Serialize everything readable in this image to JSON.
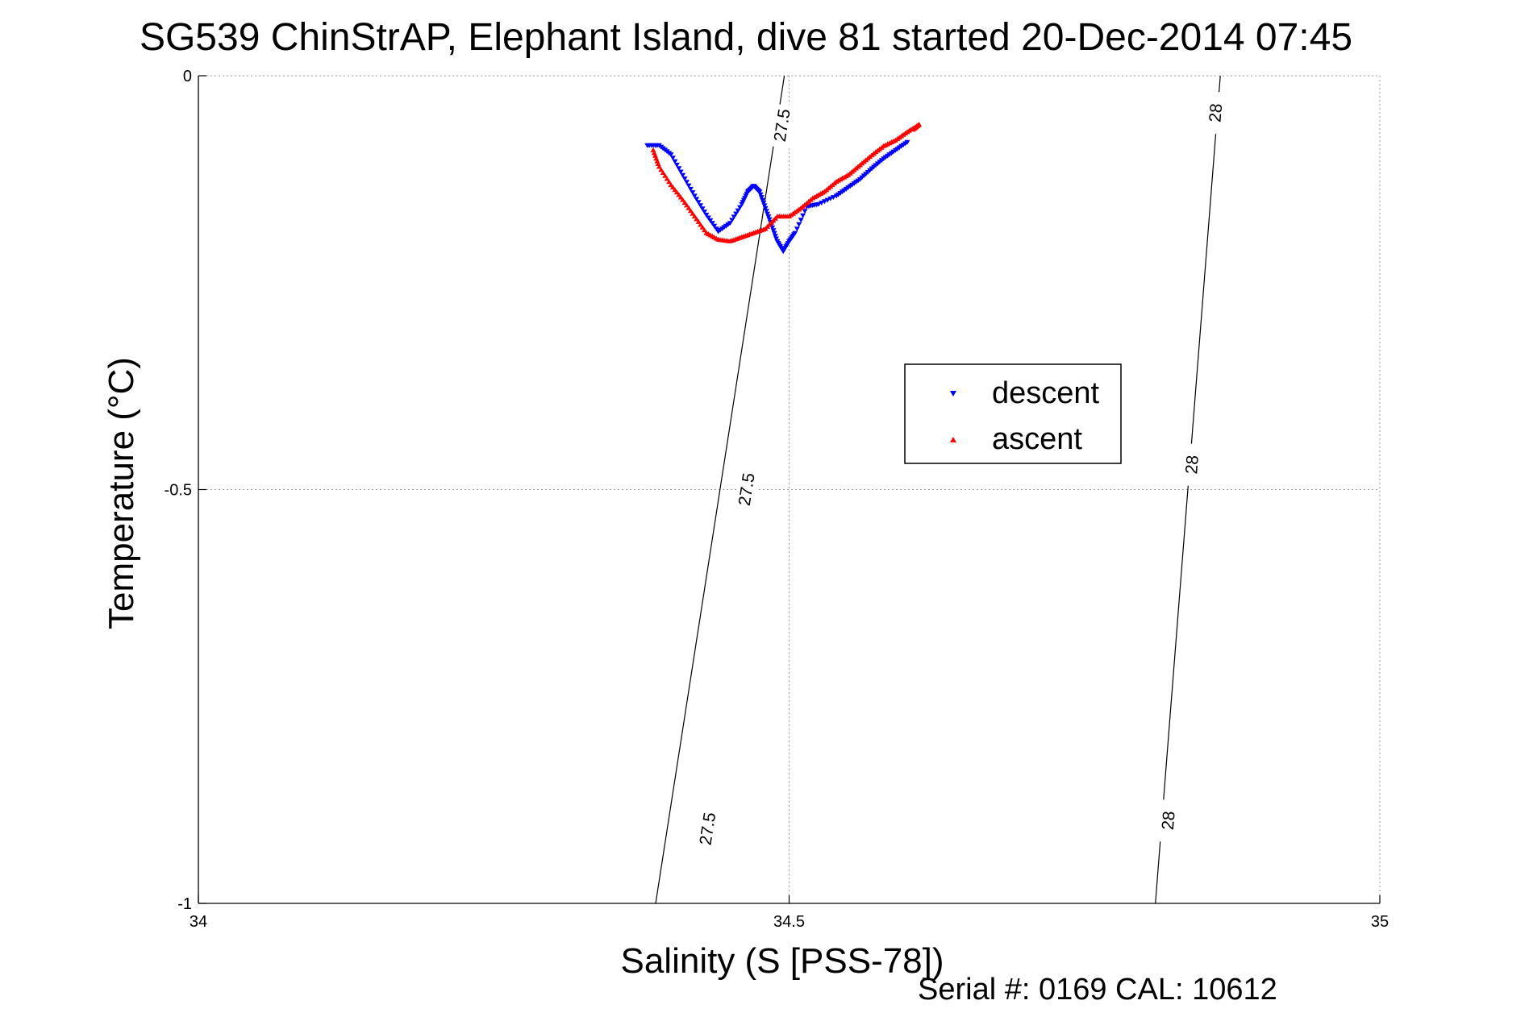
{
  "chart_data": {
    "type": "scatter",
    "title": "SG539 ChinStrAP, Elephant Island, dive 81 started 20-Dec-2014 07:45",
    "xlabel": "Salinity (S [PSS-78])",
    "ylabel": "Temperature (°C)",
    "footer": "Serial #: 0169 CAL: 10612",
    "xlim": [
      34,
      35
    ],
    "ylim": [
      -1,
      0
    ],
    "xticks": [
      34,
      34.5,
      35
    ],
    "xtick_labels": [
      "34",
      "34.5",
      "35"
    ],
    "yticks": [
      -1,
      -0.5,
      0
    ],
    "ytick_labels": [
      "-1",
      "-0.5",
      "0"
    ],
    "grid": true,
    "legend_position": "center-right",
    "series": [
      {
        "name": "descent",
        "color": "#0000ff",
        "marker": "triangle-down",
        "points": [
          [
            34.38,
            -0.084
          ],
          [
            34.39,
            -0.084
          ],
          [
            34.4,
            -0.095
          ],
          [
            34.41,
            -0.12
          ],
          [
            34.42,
            -0.145
          ],
          [
            34.43,
            -0.168
          ],
          [
            34.44,
            -0.188
          ],
          [
            34.45,
            -0.178
          ],
          [
            34.46,
            -0.155
          ],
          [
            34.465,
            -0.14
          ],
          [
            34.47,
            -0.133
          ],
          [
            34.475,
            -0.14
          ],
          [
            34.48,
            -0.16
          ],
          [
            34.485,
            -0.18
          ],
          [
            34.49,
            -0.2
          ],
          [
            34.495,
            -0.212
          ],
          [
            34.5,
            -0.2
          ],
          [
            34.505,
            -0.19
          ],
          [
            34.515,
            -0.158
          ],
          [
            34.525,
            -0.155
          ],
          [
            34.54,
            -0.145
          ],
          [
            34.55,
            -0.135
          ],
          [
            34.56,
            -0.125
          ],
          [
            34.57,
            -0.112
          ],
          [
            34.58,
            -0.1
          ],
          [
            34.59,
            -0.09
          ],
          [
            34.6,
            -0.08
          ]
        ]
      },
      {
        "name": "ascent",
        "color": "#ff0000",
        "marker": "triangle-up",
        "points": [
          [
            34.385,
            -0.09
          ],
          [
            34.39,
            -0.11
          ],
          [
            34.4,
            -0.132
          ],
          [
            34.41,
            -0.15
          ],
          [
            34.42,
            -0.17
          ],
          [
            34.43,
            -0.19
          ],
          [
            34.44,
            -0.198
          ],
          [
            34.45,
            -0.2
          ],
          [
            34.46,
            -0.195
          ],
          [
            34.47,
            -0.19
          ],
          [
            34.48,
            -0.185
          ],
          [
            34.49,
            -0.17
          ],
          [
            34.5,
            -0.17
          ],
          [
            34.51,
            -0.16
          ],
          [
            34.52,
            -0.148
          ],
          [
            34.53,
            -0.14
          ],
          [
            34.54,
            -0.128
          ],
          [
            34.55,
            -0.12
          ],
          [
            34.56,
            -0.108
          ],
          [
            34.57,
            -0.096
          ],
          [
            34.58,
            -0.085
          ],
          [
            34.59,
            -0.078
          ],
          [
            34.6,
            -0.068
          ],
          [
            34.61,
            -0.059
          ],
          [
            34.605,
            -0.065
          ]
        ]
      }
    ],
    "contours": [
      {
        "label": "27.5",
        "points": [
          [
            34.496,
            0
          ],
          [
            34.387,
            -1
          ]
        ],
        "label_points": [
          [
            34.495,
            -0.06
          ],
          [
            34.465,
            -0.5
          ],
          [
            34.432,
            -0.91
          ]
        ]
      },
      {
        "label": "28",
        "points": [
          [
            34.865,
            0
          ],
          [
            34.81,
            -1
          ]
        ],
        "label_points": [
          [
            34.862,
            -0.045
          ],
          [
            34.842,
            -0.47
          ],
          [
            34.822,
            -0.9
          ]
        ]
      }
    ]
  }
}
